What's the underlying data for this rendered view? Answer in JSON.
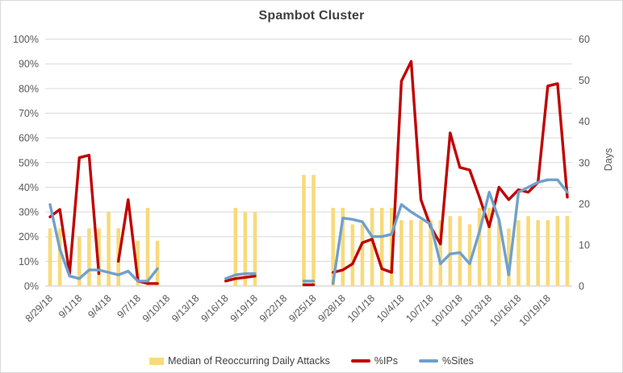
{
  "chart_data": {
    "type": "combo",
    "title": "Spambot Cluster",
    "grid": true,
    "legend_position": "bottom",
    "x_label_every": 3,
    "categories": [
      "8/29/18",
      "8/30/18",
      "8/31/18",
      "9/1/18",
      "9/2/18",
      "9/3/18",
      "9/4/18",
      "9/5/18",
      "9/6/18",
      "9/7/18",
      "9/8/18",
      "9/9/18",
      "9/10/18",
      "9/11/18",
      "9/12/18",
      "9/13/18",
      "9/14/18",
      "9/15/18",
      "9/16/18",
      "9/17/18",
      "9/18/18",
      "9/19/18",
      "9/20/18",
      "9/21/18",
      "9/22/18",
      "9/23/18",
      "9/24/18",
      "9/25/18",
      "9/26/18",
      "9/27/18",
      "9/28/18",
      "9/29/18",
      "9/30/18",
      "10/1/18",
      "10/2/18",
      "10/3/18",
      "10/4/18",
      "10/5/18",
      "10/6/18",
      "10/7/18",
      "10/8/18",
      "10/9/18",
      "10/10/18",
      "10/11/18",
      "10/12/18",
      "10/13/18",
      "10/14/18",
      "10/15/18",
      "10/16/18",
      "10/17/18",
      "10/18/18",
      "10/19/18",
      "10/20/18",
      "10/21/18"
    ],
    "axes": {
      "left": {
        "min": 0,
        "max": 100,
        "unit": "%",
        "ticks": [
          "0%",
          "10%",
          "20%",
          "30%",
          "40%",
          "50%",
          "60%",
          "70%",
          "80%",
          "90%",
          "100%"
        ]
      },
      "right": {
        "min": 0,
        "max": 60,
        "title": "Days",
        "ticks": [
          "0",
          "10",
          "20",
          "30",
          "40",
          "50",
          "60"
        ]
      }
    },
    "series": [
      {
        "name": "Median of Reoccurring Daily Attacks",
        "type": "bar",
        "axis": "right",
        "color": "#F8DA7C",
        "values": [
          14,
          14,
          null,
          12,
          14,
          14,
          18,
          14,
          null,
          11,
          19,
          11,
          null,
          null,
          null,
          null,
          null,
          null,
          null,
          19,
          18,
          18,
          null,
          null,
          null,
          null,
          27,
          27,
          null,
          19,
          19,
          15,
          15,
          19,
          19,
          19,
          16,
          16,
          16,
          16,
          16,
          17,
          17,
          15,
          19,
          19,
          16,
          14,
          16,
          17,
          16,
          16,
          17,
          17
        ]
      },
      {
        "name": "%IPs",
        "type": "line",
        "axis": "left",
        "color": "#C00000",
        "values": [
          28,
          31,
          5,
          52,
          53,
          5,
          null,
          10,
          35,
          2,
          1,
          1,
          null,
          null,
          null,
          null,
          null,
          null,
          2,
          3,
          3.5,
          4,
          null,
          null,
          null,
          null,
          0.5,
          0.5,
          null,
          5.5,
          6.5,
          9,
          17.5,
          19,
          7,
          5.5,
          83,
          91,
          35,
          24,
          17,
          62,
          48,
          47,
          36,
          24,
          40,
          35,
          39,
          38,
          42,
          81,
          82,
          36
        ]
      },
      {
        "name": "%Sites",
        "type": "line",
        "axis": "left",
        "color": "#6FA0CB",
        "values": [
          33,
          15,
          4,
          3,
          6.5,
          6.5,
          5.5,
          4.5,
          6,
          2,
          2,
          7,
          null,
          null,
          null,
          null,
          null,
          null,
          3,
          4.5,
          5,
          5,
          null,
          null,
          null,
          null,
          2,
          2,
          null,
          1,
          27.5,
          27,
          26,
          20,
          20,
          21,
          33,
          30,
          27.5,
          25,
          9,
          13,
          13.5,
          9,
          22,
          38,
          27,
          4.5,
          38,
          40,
          42,
          43,
          43,
          38
        ]
      }
    ],
    "styling": {
      "gridline_color": "#D9D9D9",
      "axis_line_color": "#C6C6C6",
      "tick_label_color": "#595959",
      "title_color": "#404040"
    }
  }
}
